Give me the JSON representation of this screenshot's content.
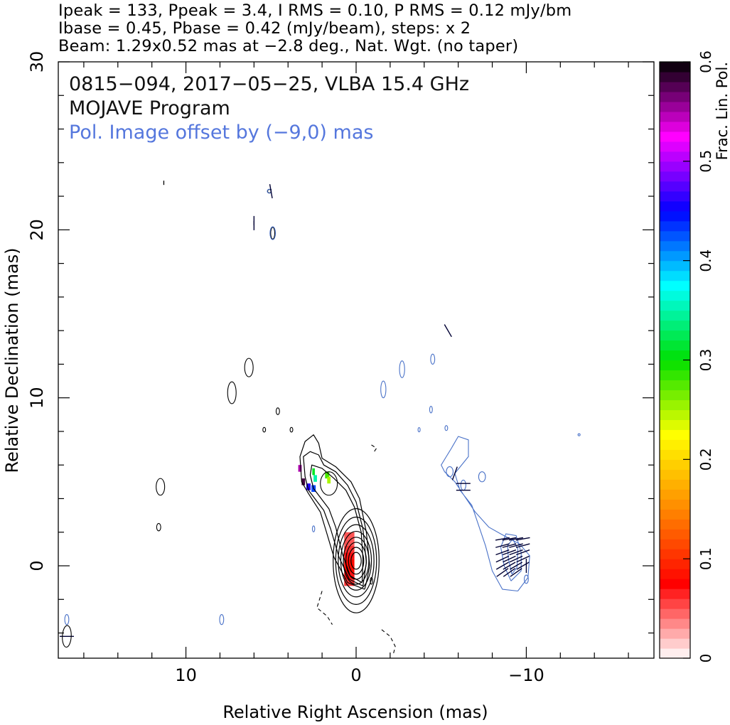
{
  "header": {
    "line1": "Ipeak = 133, Ppeak = 3.4, I RMS = 0.10, P RMS = 0.12 mJy/bm",
    "line2": "Ibase = 0.45, Pbase = 0.42 (mJy/beam), steps: x 2",
    "line3": "Beam: 1.29x0.52 mas at −2.8 deg., Nat. Wgt. (no taper)"
  },
  "annotations": {
    "source_line": "0815−094, 2017−05−25, VLBA 15.4 GHz",
    "program": "MOJAVE Program",
    "pol_note": "Pol. Image offset by (−9,0) mas"
  },
  "colors": {
    "total_intensity_contour": "#000000",
    "polarization_contour": "#4a72c8",
    "pol_note_text": "#5577dd",
    "evpa_ticks": "#000033"
  },
  "chart_data": {
    "type": "contour",
    "xlabel": "Relative Right Ascension (mas)",
    "ylabel": "Relative Declination (mas)",
    "xlim": [
      17.5,
      -17.5
    ],
    "ylim": [
      -5.5,
      30
    ],
    "x_ticks": [
      10,
      0,
      -10
    ],
    "x_tick_labels": [
      "10",
      "0",
      "−10"
    ],
    "y_ticks": [
      0,
      10,
      20,
      30
    ],
    "y_tick_labels": [
      "0",
      "10",
      "20",
      "30"
    ],
    "x_minor_step": 2,
    "y_minor_step": 2,
    "grid": false,
    "colorbar": {
      "label": "Frac. Lin. Pol.",
      "range": [
        0,
        0.6
      ],
      "ticks": [
        0,
        0.1,
        0.2,
        0.3,
        0.4,
        0.5,
        0.6
      ],
      "tick_labels": [
        "0",
        "0.1",
        "0.2",
        "0.3",
        "0.4",
        "0.5",
        "0.6"
      ],
      "stops": [
        "#ffffff",
        "#ff0000",
        "#ff8800",
        "#ffff00",
        "#00e000",
        "#00ffff",
        "#0000ff",
        "#ff00ff",
        "#000000"
      ]
    },
    "stokes_i_core": {
      "center": [
        0.0,
        0.3
      ],
      "radii": [
        [
          1.35,
          3.1
        ],
        [
          1.2,
          2.6
        ],
        [
          1.05,
          2.15
        ],
        [
          0.9,
          1.75
        ],
        [
          0.75,
          1.4
        ],
        [
          0.6,
          1.1
        ],
        [
          0.45,
          0.8
        ],
        [
          0.3,
          0.5
        ]
      ]
    },
    "stokes_i_jet_contours": [
      [
        [
          -0.5,
          -1.4
        ],
        [
          0.5,
          -1.0
        ],
        [
          1.3,
          0.5
        ],
        [
          1.8,
          2.2
        ],
        [
          2.1,
          3.2
        ],
        [
          2.8,
          4.3
        ],
        [
          3.2,
          5.0
        ],
        [
          3.3,
          6.5
        ],
        [
          3.0,
          7.4
        ],
        [
          2.5,
          7.8
        ],
        [
          2.2,
          7.3
        ],
        [
          2.0,
          6.4
        ],
        [
          1.2,
          5.9
        ],
        [
          0.3,
          5.0
        ],
        [
          -0.2,
          4.0
        ],
        [
          -0.6,
          2.0
        ],
        [
          -0.8,
          0.0
        ],
        [
          -0.6,
          -1.0
        ],
        [
          -0.5,
          -1.4
        ]
      ],
      [
        [
          -0.4,
          -1.2
        ],
        [
          0.4,
          -0.8
        ],
        [
          1.0,
          0.5
        ],
        [
          1.5,
          2.2
        ],
        [
          1.9,
          3.3
        ],
        [
          2.8,
          4.5
        ],
        [
          3.0,
          5.3
        ],
        [
          3.1,
          6.5
        ],
        [
          2.7,
          6.8
        ],
        [
          2.2,
          6.6
        ],
        [
          1.9,
          6.0
        ],
        [
          1.2,
          5.6
        ],
        [
          0.5,
          4.8
        ],
        [
          0.0,
          3.8
        ],
        [
          -0.4,
          2.2
        ],
        [
          -0.6,
          0.2
        ],
        [
          -0.4,
          -1.2
        ]
      ],
      [
        [
          -0.35,
          -1.0
        ],
        [
          0.35,
          -0.6
        ],
        [
          0.8,
          0.7
        ],
        [
          1.2,
          2.3
        ],
        [
          1.6,
          3.4
        ],
        [
          2.5,
          4.6
        ],
        [
          2.7,
          5.4
        ],
        [
          2.6,
          6.0
        ],
        [
          2.0,
          5.8
        ],
        [
          1.3,
          5.2
        ],
        [
          0.6,
          4.5
        ],
        [
          0.1,
          3.5
        ],
        [
          -0.3,
          2.0
        ],
        [
          -0.4,
          0.4
        ],
        [
          -0.35,
          -1.0
        ]
      ]
    ],
    "stokes_i_blobs": [
      [
        11.5,
        4.7,
        0.25,
        0.5
      ],
      [
        11.6,
        2.3,
        0.12,
        0.22
      ],
      [
        7.3,
        10.3,
        0.25,
        0.65
      ],
      [
        6.3,
        11.8,
        0.25,
        0.55
      ],
      [
        4.6,
        9.2,
        0.1,
        0.2
      ],
      [
        5.4,
        8.1,
        0.08,
        0.14
      ],
      [
        3.8,
        8.1,
        0.08,
        0.14
      ],
      [
        1.6,
        4.9,
        0.5,
        0.7
      ],
      [
        5.1,
        22.3,
        0.1,
        0.1
      ],
      [
        4.9,
        19.8,
        0.12,
        0.35
      ],
      [
        -0.9,
        -0.9,
        0.07,
        0.2
      ]
    ],
    "stokes_i_negative": [
      [
        [
          2.0,
          -1.5
        ],
        [
          2.3,
          -2.5
        ],
        [
          1.7,
          -3.0
        ],
        [
          1.4,
          -3.5
        ]
      ],
      [
        [
          -1.5,
          -3.8
        ],
        [
          -2.0,
          -4.2
        ],
        [
          -2.3,
          -4.8
        ],
        [
          -2.2,
          -5.2
        ]
      ],
      [
        [
          -0.9,
          7.2
        ],
        [
          -1.2,
          7.0
        ],
        [
          -1.0,
          6.7
        ]
      ]
    ],
    "stokes_i_small_ticks": [
      [
        11.3,
        22.8
      ],
      [
        6.0,
        20.4
      ],
      [
        5.0,
        22.3
      ]
    ],
    "frac_pol_pixels": [
      [
        0.4,
        1.8,
        0.6,
        0.05
      ],
      [
        0.4,
        1.4,
        0.6,
        0.05
      ],
      [
        0.4,
        1.0,
        0.6,
        0.06
      ],
      [
        0.4,
        0.6,
        0.6,
        0.07
      ],
      [
        0.4,
        0.2,
        0.6,
        0.08
      ],
      [
        0.4,
        -0.2,
        0.6,
        0.08
      ],
      [
        0.4,
        -0.6,
        0.6,
        0.07
      ],
      [
        0.4,
        -1.0,
        0.6,
        0.06
      ],
      [
        3.3,
        5.8,
        0.2,
        0.55
      ],
      [
        3.1,
        5.0,
        0.2,
        0.58
      ],
      [
        2.8,
        4.7,
        0.25,
        0.46
      ],
      [
        2.5,
        4.6,
        0.25,
        0.43
      ],
      [
        2.4,
        5.2,
        0.2,
        0.35
      ],
      [
        2.5,
        5.6,
        0.15,
        0.31
      ],
      [
        1.7,
        5.4,
        0.25,
        0.28
      ],
      [
        1.6,
        5.1,
        0.2,
        0.25
      ]
    ],
    "pol_contours": [
      [
        [
          -9.5,
          -1.5
        ],
        [
          -8.6,
          -1.4
        ],
        [
          -8.0,
          -0.3
        ],
        [
          -7.6,
          1.2
        ],
        [
          -7.2,
          2.4
        ],
        [
          -6.8,
          3.6
        ],
        [
          -6.1,
          4.5
        ],
        [
          -5.8,
          5.5
        ],
        [
          -6.6,
          6.5
        ],
        [
          -6.6,
          7.5
        ],
        [
          -6.0,
          7.7
        ],
        [
          -5.6,
          7.0
        ],
        [
          -5.3,
          6.5
        ],
        [
          -5.0,
          6.0
        ],
        [
          -5.2,
          5.6
        ],
        [
          -5.8,
          5.0
        ],
        [
          -6.4,
          4.1
        ],
        [
          -7.0,
          3.2
        ],
        [
          -7.8,
          2.3
        ],
        [
          -8.5,
          1.9
        ],
        [
          -9.6,
          1.3
        ],
        [
          -10.2,
          0.6
        ],
        [
          -10.1,
          -0.7
        ],
        [
          -9.5,
          -1.5
        ]
      ],
      [
        [
          -9.1,
          -0.9
        ],
        [
          -8.7,
          0.0
        ],
        [
          -8.5,
          1.1
        ],
        [
          -8.8,
          1.9
        ],
        [
          -9.4,
          1.8
        ],
        [
          -9.7,
          0.8
        ],
        [
          -9.7,
          -0.3
        ],
        [
          -9.1,
          -0.9
        ]
      ],
      [
        [
          -9.15,
          -0.5
        ],
        [
          -8.95,
          0.4
        ],
        [
          -8.9,
          1.2
        ],
        [
          -9.2,
          1.6
        ],
        [
          -9.5,
          1.0
        ],
        [
          -9.45,
          -0.1
        ],
        [
          -9.15,
          -0.5
        ]
      ]
    ],
    "pol_blobs": [
      [
        -5.5,
        5.6,
        0.2,
        0.3
      ],
      [
        -7.4,
        5.3,
        0.2,
        0.3
      ],
      [
        -6.3,
        4.8,
        0.15,
        0.3
      ],
      [
        -4.5,
        12.3,
        0.12,
        0.3
      ],
      [
        -1.6,
        10.5,
        0.15,
        0.5
      ],
      [
        -2.7,
        11.7,
        0.15,
        0.5
      ],
      [
        -4.4,
        9.3,
        0.08,
        0.2
      ],
      [
        -5.3,
        8.2,
        0.08,
        0.15
      ],
      [
        -3.7,
        8.1,
        0.06,
        0.13
      ],
      [
        -10.0,
        -0.8,
        0.12,
        0.25
      ],
      [
        5.1,
        22.3,
        0.12,
        0.12
      ],
      [
        4.9,
        19.8,
        0.16,
        0.38
      ],
      [
        2.5,
        2.2,
        0.07,
        0.18
      ],
      [
        7.9,
        -3.2,
        0.12,
        0.3
      ],
      [
        17.0,
        -3.2,
        0.12,
        0.3
      ],
      [
        -13.1,
        7.8,
        0.05,
        0.05
      ]
    ],
    "evpa_vectors": [
      [
        -8.6,
        1.6,
        80
      ],
      [
        -9.0,
        1.6,
        80
      ],
      [
        -9.4,
        1.6,
        80
      ],
      [
        -9.8,
        1.6,
        80
      ],
      [
        -8.6,
        1.2,
        75
      ],
      [
        -9.0,
        1.2,
        75
      ],
      [
        -9.4,
        1.2,
        75
      ],
      [
        -9.8,
        1.2,
        75
      ],
      [
        -8.6,
        0.8,
        70
      ],
      [
        -9.0,
        0.8,
        70
      ],
      [
        -9.4,
        0.8,
        70
      ],
      [
        -9.8,
        0.8,
        70
      ],
      [
        -8.6,
        0.4,
        65
      ],
      [
        -9.0,
        0.4,
        65
      ],
      [
        -9.4,
        0.4,
        65
      ],
      [
        -9.8,
        0.4,
        65
      ],
      [
        -8.6,
        0.0,
        60
      ],
      [
        -9.0,
        0.0,
        60
      ],
      [
        -9.4,
        0.0,
        60
      ],
      [
        -9.8,
        0.0,
        60
      ],
      [
        -8.6,
        -0.4,
        55
      ],
      [
        -9.0,
        -0.4,
        55
      ],
      [
        -9.4,
        -0.4,
        55
      ],
      [
        -10.0,
        0.0,
        0
      ],
      [
        -5.8,
        5.5,
        20
      ],
      [
        -6.3,
        4.9,
        90
      ],
      [
        -6.3,
        4.5,
        90
      ],
      [
        -5.4,
        14.0,
        150
      ],
      [
        5.0,
        22.3,
        170
      ],
      [
        6.0,
        20.4,
        0
      ],
      [
        17.0,
        -4.2,
        90
      ]
    ],
    "beam": {
      "center": [
        17.0,
        -4.2
      ],
      "major": 1.29,
      "minor": 0.52,
      "pa": -2.8
    }
  }
}
